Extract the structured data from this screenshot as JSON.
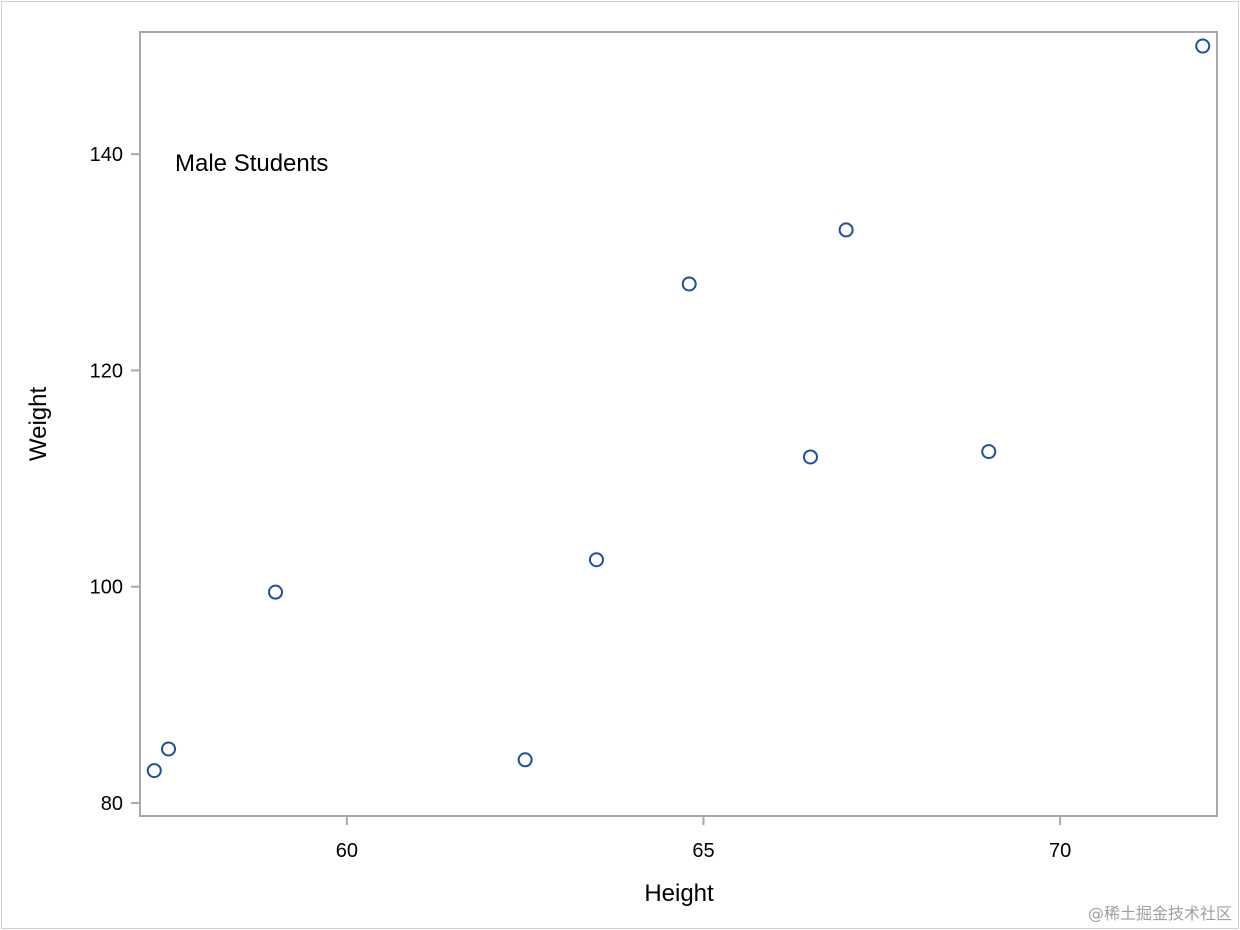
{
  "chart_data": {
    "type": "scatter",
    "title": "",
    "xlabel": "Height",
    "ylabel": "Weight",
    "annotation": "Male Students",
    "xlim": [
      57.1,
      72.2
    ],
    "ylim": [
      78.8,
      151.3
    ],
    "x_ticks": [
      60,
      65,
      70
    ],
    "y_ticks": [
      80,
      100,
      120,
      140
    ],
    "grid": false,
    "marker_color": "#1f4e9c",
    "points": [
      {
        "x": 57.3,
        "y": 83
      },
      {
        "x": 57.5,
        "y": 85
      },
      {
        "x": 59.0,
        "y": 99.5
      },
      {
        "x": 62.5,
        "y": 84
      },
      {
        "x": 63.5,
        "y": 102.5
      },
      {
        "x": 64.8,
        "y": 128
      },
      {
        "x": 66.5,
        "y": 112
      },
      {
        "x": 67.0,
        "y": 133
      },
      {
        "x": 69.0,
        "y": 112.5
      },
      {
        "x": 72.0,
        "y": 150
      }
    ]
  },
  "watermark": "@稀土掘金技术社区"
}
